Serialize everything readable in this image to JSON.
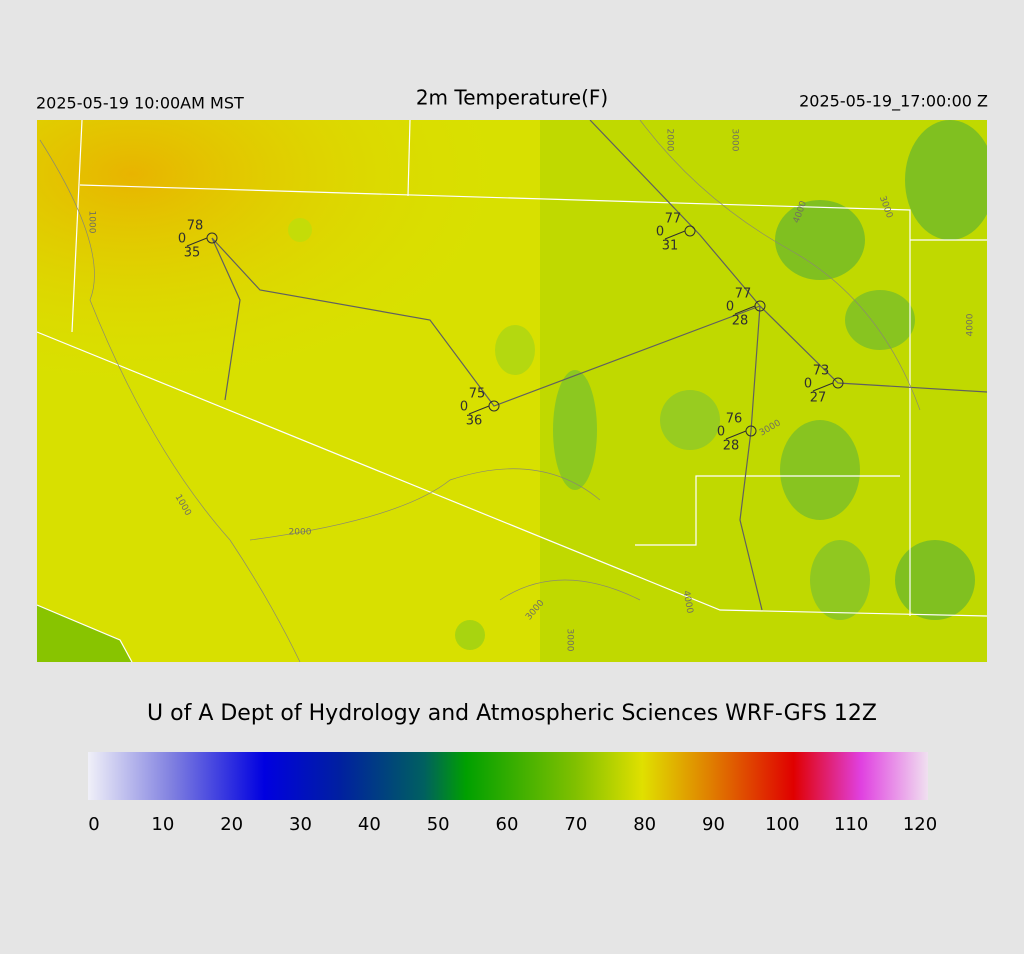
{
  "header": {
    "left": "2025-05-19 10:00AM MST",
    "title": "2m Temperature(F)",
    "right": "2025-05-19_17:00:00 Z"
  },
  "stations": [
    {
      "temp": 78,
      "wind": 0,
      "dewpoint": 35
    },
    {
      "temp": 77,
      "wind": 0,
      "dewpoint": 31
    },
    {
      "temp": 77,
      "wind": 0,
      "dewpoint": 28
    },
    {
      "temp": 73,
      "wind": 0,
      "dewpoint": 27
    },
    {
      "temp": 75,
      "wind": 0,
      "dewpoint": 36
    },
    {
      "temp": 76,
      "wind": 0,
      "dewpoint": 28
    }
  ],
  "contour_labels": [
    "1000",
    "1000",
    "2000",
    "2000",
    "3000",
    "4000",
    "3000",
    "4000",
    "3000",
    "3000",
    "3000",
    "4000"
  ],
  "footer": "U of A Dept of Hydrology and Atmospheric Sciences WRF-GFS 12Z",
  "colorbar": {
    "range": [
      0,
      120
    ],
    "ticks": [
      0,
      10,
      20,
      30,
      40,
      50,
      60,
      70,
      80,
      90,
      100,
      110,
      120
    ]
  }
}
